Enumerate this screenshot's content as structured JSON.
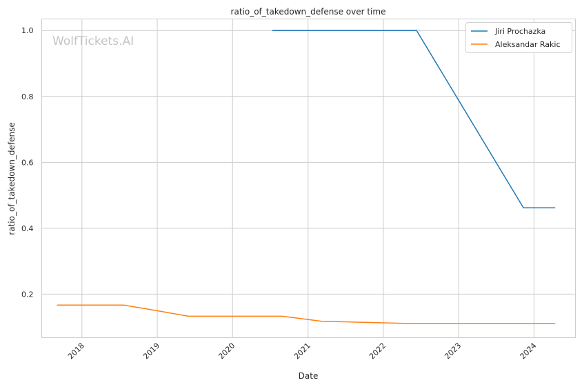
{
  "chart_data": {
    "type": "line",
    "title": "ratio_of_takedown_defense over time",
    "xlabel": "Date",
    "ylabel": "ratio_of_takedown_defense",
    "watermark": "WolfTickets.AI",
    "x_ticks": [
      "2018",
      "2019",
      "2020",
      "2021",
      "2022",
      "2023",
      "2024"
    ],
    "y_ticks": [
      "0.2",
      "0.4",
      "0.6",
      "0.8",
      "1.0"
    ],
    "xlim": [
      "2017-06-20",
      "2024-07-20"
    ],
    "ylim": [
      0.068,
      1.035
    ],
    "grid": true,
    "legend_position": "top-right",
    "series": [
      {
        "name": "Jiri Prochazka",
        "color": "#1f77b4",
        "points": [
          {
            "x": "2020-07-12",
            "y": 1.0
          },
          {
            "x": "2022-06-11",
            "y": 1.0
          },
          {
            "x": "2023-11-11",
            "y": 0.462
          },
          {
            "x": "2024-04-13",
            "y": 0.462
          }
        ]
      },
      {
        "name": "Aleksandar Rakic",
        "color": "#ff7f0e",
        "points": [
          {
            "x": "2017-09-02",
            "y": 0.167
          },
          {
            "x": "2018-07-22",
            "y": 0.167
          },
          {
            "x": "2018-12-29",
            "y": 0.15
          },
          {
            "x": "2019-06-01",
            "y": 0.133
          },
          {
            "x": "2020-08-29",
            "y": 0.133
          },
          {
            "x": "2021-03-06",
            "y": 0.118
          },
          {
            "x": "2022-05-14",
            "y": 0.111
          },
          {
            "x": "2024-04-13",
            "y": 0.111
          }
        ]
      }
    ]
  }
}
